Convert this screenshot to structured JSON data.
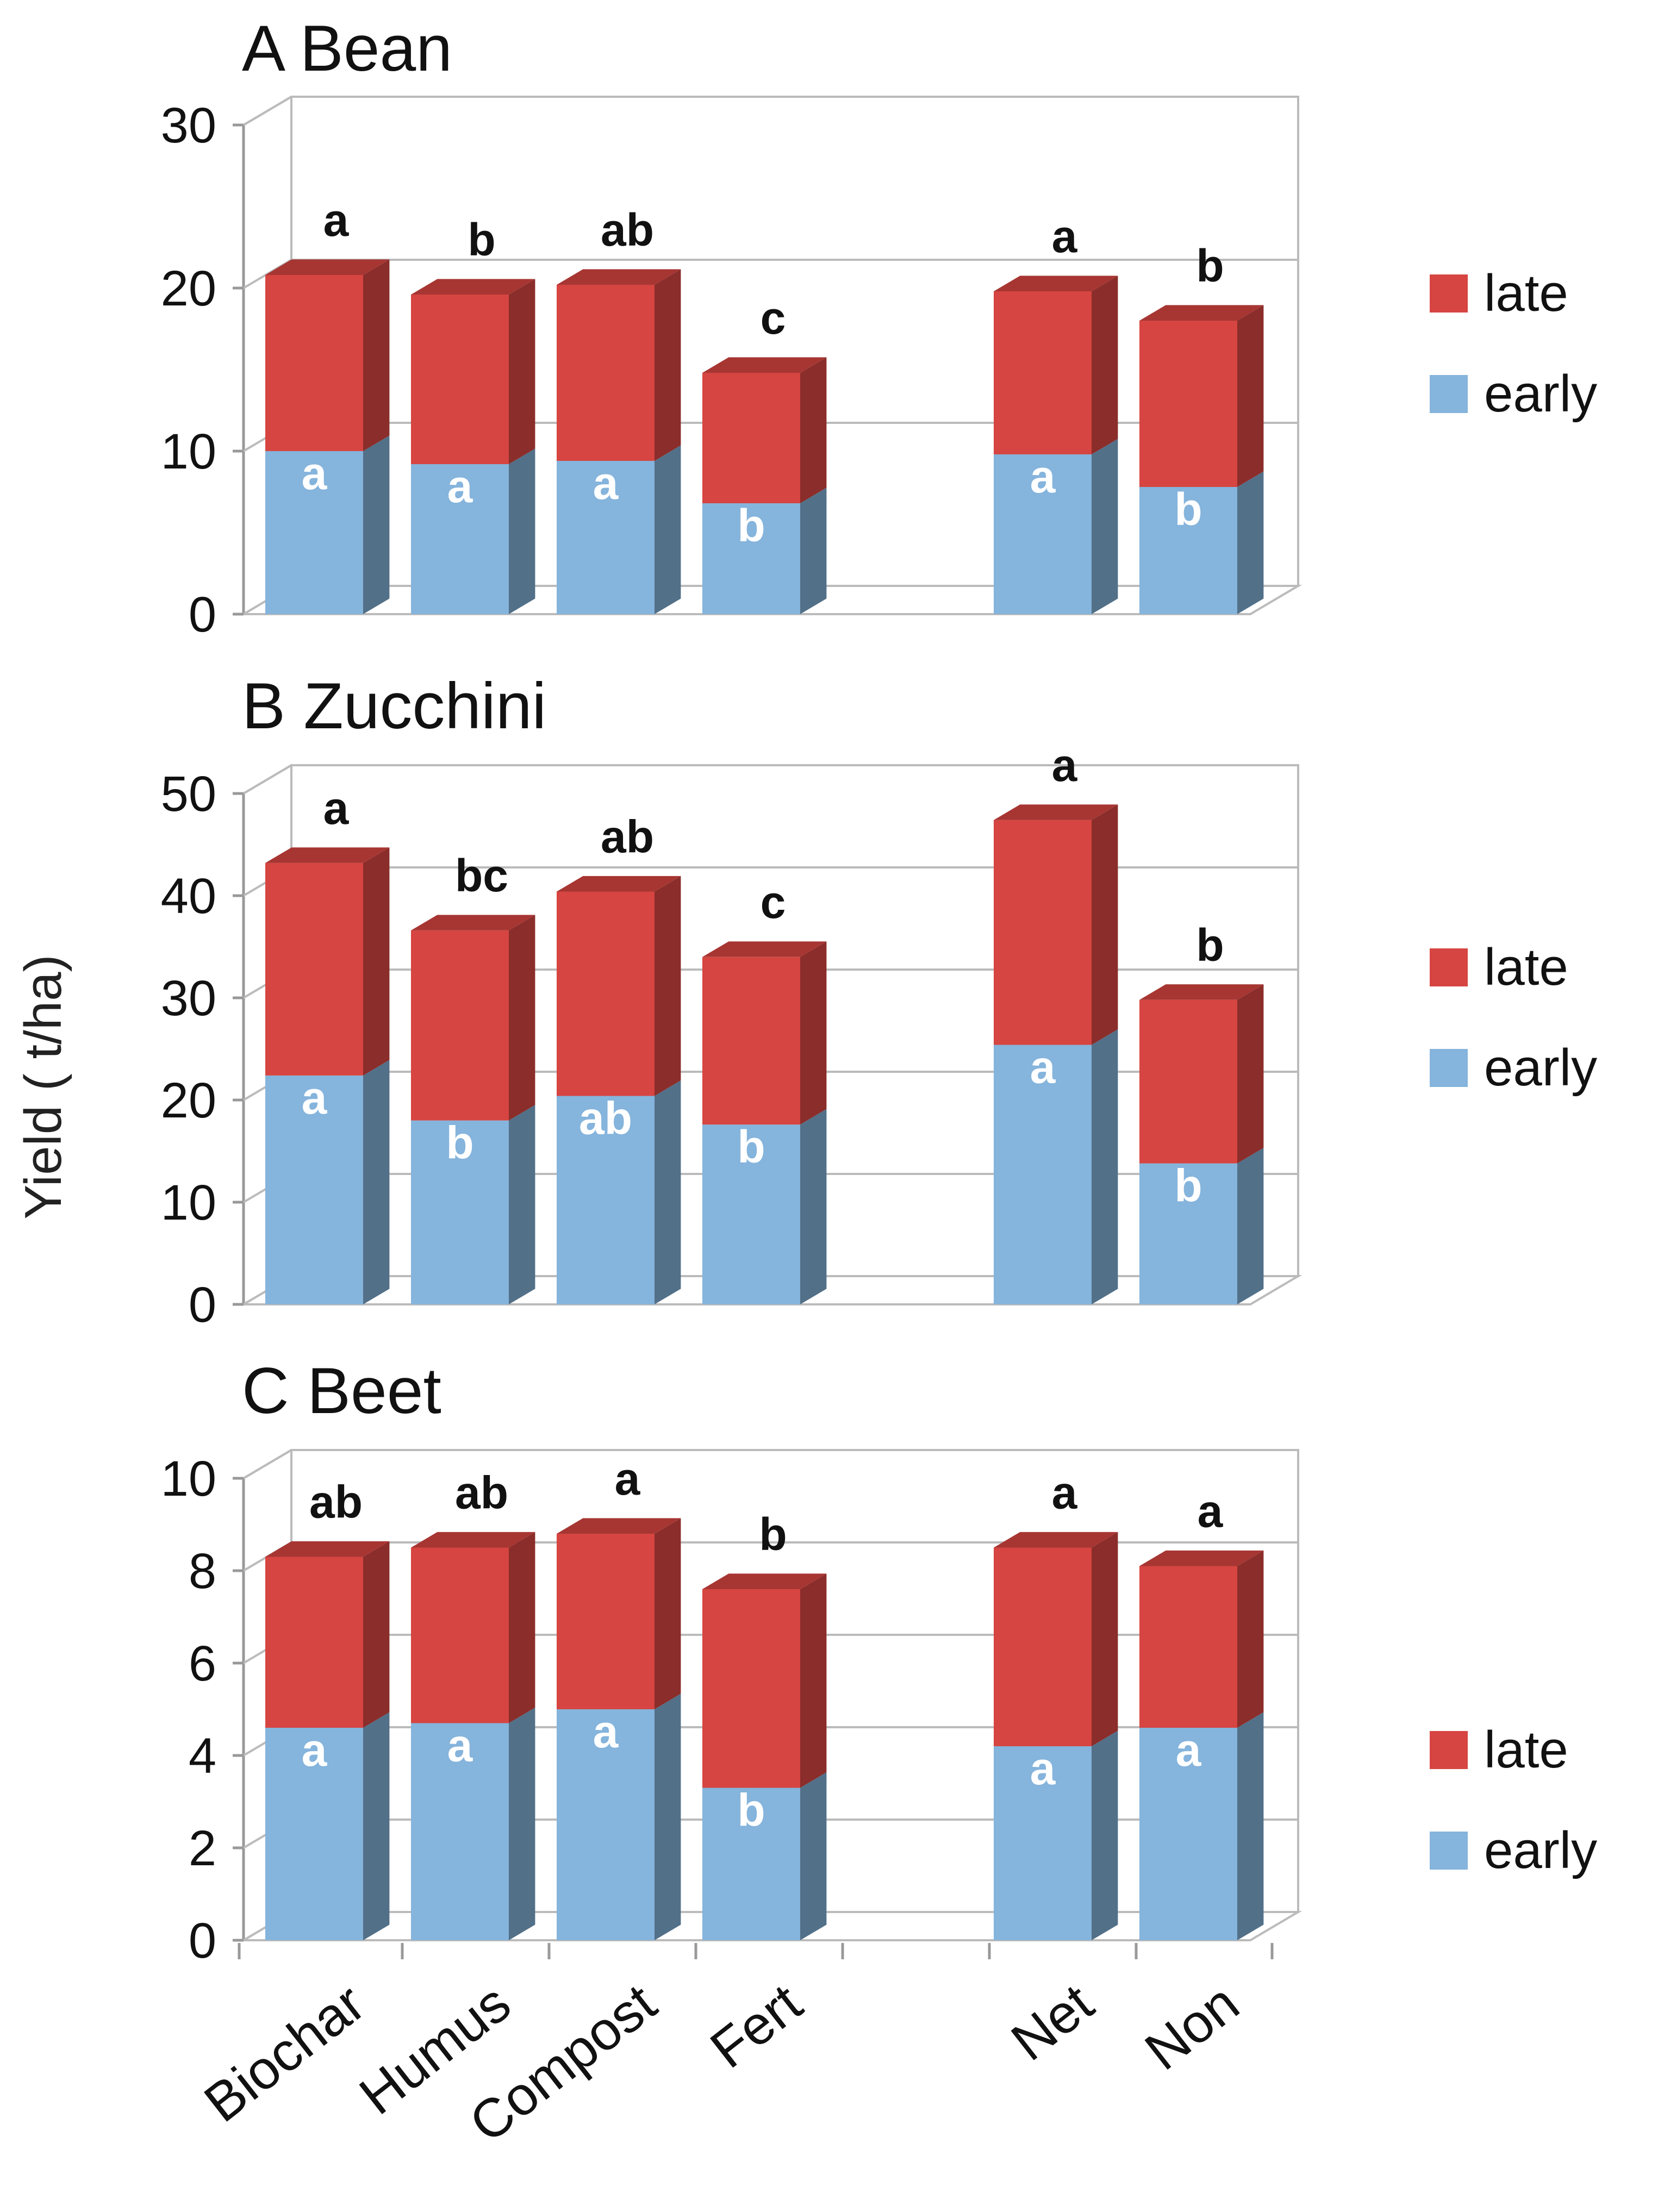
{
  "figure": {
    "ylabel": "Yield ( t/ha)",
    "categories": [
      "Biochar",
      "Humus",
      "Compost",
      "Fert",
      "",
      "Net",
      "Non"
    ],
    "colors": {
      "late": "#d64541",
      "early": "#85b4dc"
    }
  },
  "chart_data": [
    {
      "type": "bar",
      "stacked": true,
      "title": "A  Bean",
      "categories": [
        "Biochar",
        "Humus",
        "Compost",
        "Fert",
        "",
        "Net",
        "Non"
      ],
      "ylim": [
        0,
        30
      ],
      "yticks": [
        "0",
        "10",
        "20",
        "30"
      ],
      "series": [
        {
          "name": "early",
          "values": [
            10,
            9.2,
            9.4,
            6.8,
            null,
            9.8,
            7.8
          ],
          "labels": [
            "a",
            "a",
            "a",
            "b",
            "",
            "a",
            "b"
          ]
        },
        {
          "name": "late",
          "values": [
            10.8,
            10.4,
            10.8,
            8.0,
            null,
            10.0,
            10.2
          ],
          "labels": [
            "a",
            "b",
            "ab",
            "c",
            "",
            "a",
            "b"
          ]
        }
      ],
      "legend": [
        "late",
        "early"
      ]
    },
    {
      "type": "bar",
      "stacked": true,
      "title": "B  Zucchini",
      "categories": [
        "Biochar",
        "Humus",
        "Compost",
        "Fert",
        "",
        "Net",
        "Non"
      ],
      "ylim": [
        0,
        50
      ],
      "yticks": [
        "0",
        "10",
        "20",
        "30",
        "40",
        "50"
      ],
      "series": [
        {
          "name": "early",
          "values": [
            22.4,
            18,
            20.4,
            17.6,
            null,
            25.4,
            13.8
          ],
          "labels": [
            "a",
            "b",
            "ab",
            "b",
            "",
            "a",
            "b"
          ]
        },
        {
          "name": "late",
          "values": [
            20.8,
            18.6,
            20.0,
            16.4,
            null,
            22.0,
            16.0
          ],
          "labels": [
            "a",
            "bc",
            "ab",
            "c",
            "",
            "a",
            "b"
          ]
        }
      ],
      "legend": [
        "late",
        "early"
      ]
    },
    {
      "type": "bar",
      "stacked": true,
      "title": "C  Beet",
      "categories": [
        "Biochar",
        "Humus",
        "Compost",
        "Fert",
        "",
        "Net",
        "Non"
      ],
      "ylim": [
        0,
        10
      ],
      "yticks": [
        "0",
        "2",
        "4",
        "6",
        "8",
        "10"
      ],
      "series": [
        {
          "name": "early",
          "values": [
            4.6,
            4.7,
            5.0,
            3.3,
            null,
            4.2,
            4.6
          ],
          "labels": [
            "a",
            "a",
            "a",
            "b",
            "",
            "a",
            "a"
          ]
        },
        {
          "name": "late",
          "values": [
            3.7,
            3.8,
            3.8,
            4.3,
            null,
            4.3,
            3.5
          ],
          "labels": [
            "ab",
            "ab",
            "a",
            "b",
            "",
            "a",
            "a"
          ]
        }
      ],
      "legend": [
        "late",
        "early"
      ]
    }
  ]
}
